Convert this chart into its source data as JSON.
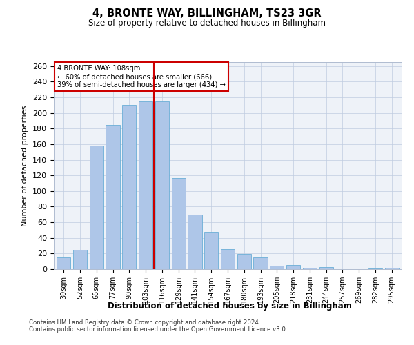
{
  "title": "4, BRONTE WAY, BILLINGHAM, TS23 3GR",
  "subtitle": "Size of property relative to detached houses in Billingham",
  "xlabel": "Distribution of detached houses by size in Billingham",
  "ylabel": "Number of detached properties",
  "categories": [
    "39sqm",
    "52sqm",
    "65sqm",
    "77sqm",
    "90sqm",
    "103sqm",
    "116sqm",
    "129sqm",
    "141sqm",
    "154sqm",
    "167sqm",
    "180sqm",
    "193sqm",
    "205sqm",
    "218sqm",
    "231sqm",
    "244sqm",
    "257sqm",
    "269sqm",
    "282sqm",
    "295sqm"
  ],
  "values": [
    15,
    25,
    158,
    185,
    210,
    215,
    215,
    117,
    70,
    48,
    26,
    19,
    15,
    4,
    5,
    2,
    3,
    0,
    0,
    1,
    2
  ],
  "bar_color": "#aec6e8",
  "bar_edgecolor": "#6aaed6",
  "vline_x": 5.5,
  "vline_color": "#cc0000",
  "annotation_text": "4 BRONTE WAY: 108sqm\n← 60% of detached houses are smaller (666)\n39% of semi-detached houses are larger (434) →",
  "annotation_box_color": "#ffffff",
  "annotation_box_edgecolor": "#cc0000",
  "ylim": [
    0,
    265
  ],
  "yticks": [
    0,
    20,
    40,
    60,
    80,
    100,
    120,
    140,
    160,
    180,
    200,
    220,
    240,
    260
  ],
  "bg_color": "#eef2f8",
  "footer1": "Contains HM Land Registry data © Crown copyright and database right 2024.",
  "footer2": "Contains public sector information licensed under the Open Government Licence v3.0."
}
